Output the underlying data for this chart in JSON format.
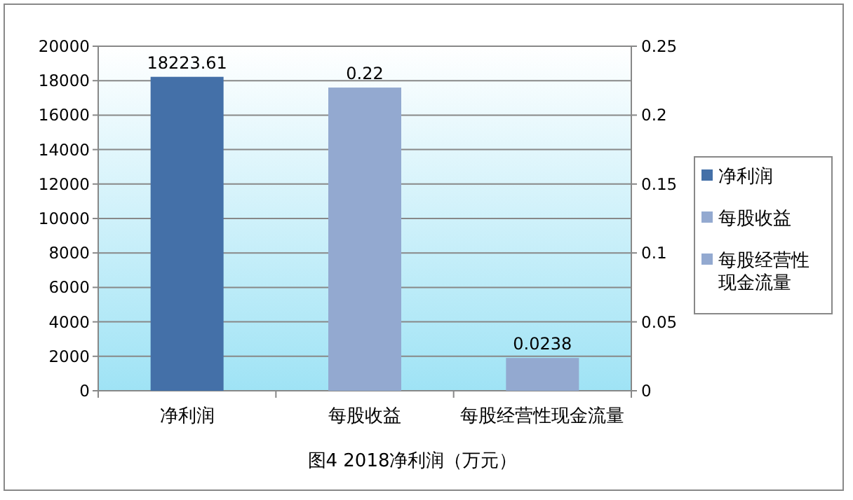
{
  "chart_data": {
    "type": "bar",
    "title": "图4  2018净利润（万元）",
    "categories": [
      "净利润",
      "每股收益",
      "每股经营性现金流量"
    ],
    "series": [
      {
        "name": "净利润",
        "color": "#4470a8",
        "values": [
          18223.61,
          null,
          null
        ]
      },
      {
        "name": "每股收益",
        "color": "#93a9d0",
        "values": [
          null,
          0.22,
          null
        ],
        "axis": "y2"
      },
      {
        "name": "每股经营性现金流量",
        "color": "#93a9d0",
        "values": [
          null,
          null,
          0.0238
        ],
        "axis": "y2"
      }
    ],
    "ylim": [
      0,
      20000
    ],
    "yticks": [
      0,
      2000,
      4000,
      6000,
      8000,
      10000,
      12000,
      14000,
      16000,
      18000,
      20000
    ],
    "y2lim": [
      0,
      0.25
    ],
    "y2ticks": [
      0,
      0.05,
      0.1,
      0.15,
      0.2,
      0.25
    ],
    "grid": "y",
    "legend": "right",
    "data_labels": true
  }
}
